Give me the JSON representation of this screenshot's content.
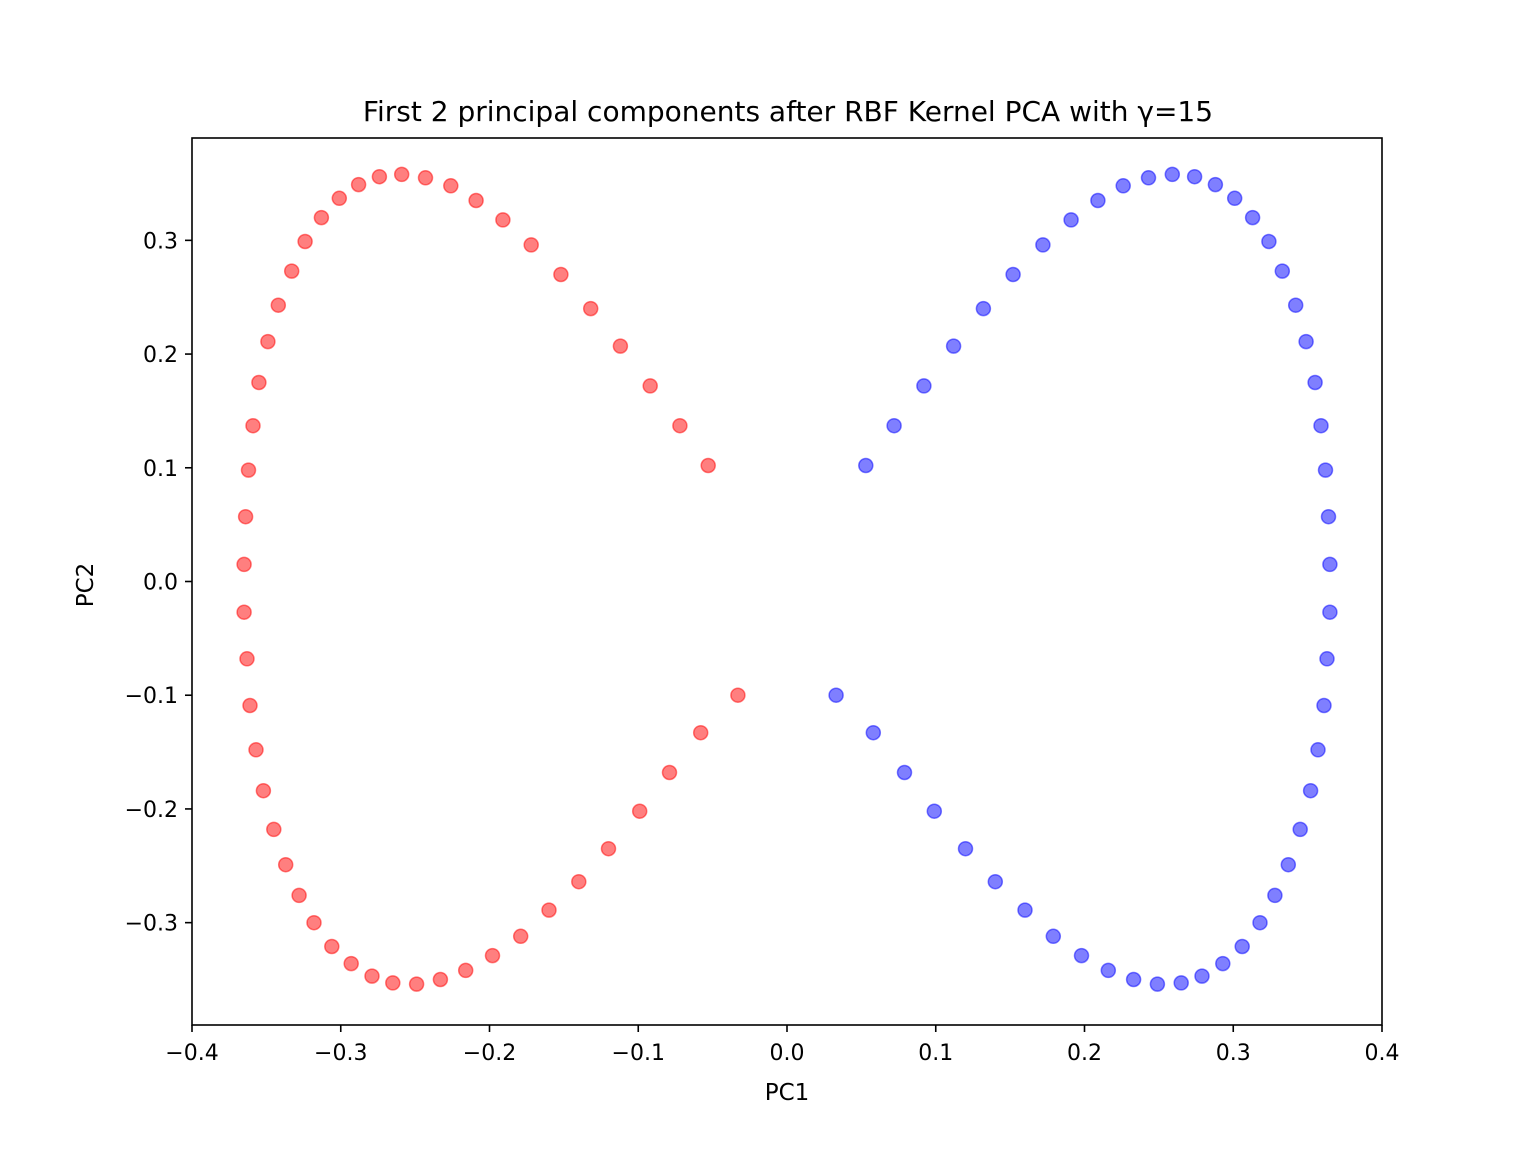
{
  "chart_data": {
    "type": "scatter",
    "title": "First 2 principal components after RBF Kernel PCA with γ=15",
    "xlabel": "PC1",
    "ylabel": "PC2",
    "xlim": [
      -0.4,
      0.4
    ],
    "ylim": [
      -0.39,
      0.39
    ],
    "xticks": [
      -0.4,
      -0.3,
      -0.2,
      -0.1,
      0.0,
      0.1,
      0.2,
      0.3,
      0.4
    ],
    "xtick_labels": [
      "−0.4",
      "−0.3",
      "−0.2",
      "−0.1",
      "0.0",
      "0.1",
      "0.2",
      "0.3",
      "0.4"
    ],
    "yticks": [
      -0.3,
      -0.2,
      -0.1,
      0.0,
      0.1,
      0.2,
      0.3
    ],
    "ytick_labels": [
      "−0.3",
      "−0.2",
      "−0.1",
      "0.0",
      "0.1",
      "0.2",
      "0.3"
    ],
    "grid": false,
    "series": [
      {
        "color": "#ff0000",
        "alpha": 0.5,
        "points": [
          [
            -0.053,
            0.102
          ],
          [
            -0.072,
            0.137
          ],
          [
            -0.092,
            0.172
          ],
          [
            -0.112,
            0.207
          ],
          [
            -0.132,
            0.24
          ],
          [
            -0.152,
            0.27
          ],
          [
            -0.172,
            0.296
          ],
          [
            -0.191,
            0.318
          ],
          [
            -0.209,
            0.335
          ],
          [
            -0.226,
            0.348
          ],
          [
            -0.243,
            0.355
          ],
          [
            -0.259,
            0.358
          ],
          [
            -0.274,
            0.356
          ],
          [
            -0.288,
            0.349
          ],
          [
            -0.301,
            0.337
          ],
          [
            -0.313,
            0.32
          ],
          [
            -0.324,
            0.299
          ],
          [
            -0.333,
            0.273
          ],
          [
            -0.342,
            0.243
          ],
          [
            -0.349,
            0.211
          ],
          [
            -0.355,
            0.175
          ],
          [
            -0.359,
            0.137
          ],
          [
            -0.362,
            0.098
          ],
          [
            -0.364,
            0.057
          ],
          [
            -0.365,
            0.015
          ],
          [
            -0.365,
            -0.027
          ],
          [
            -0.363,
            -0.068
          ],
          [
            -0.361,
            -0.109
          ],
          [
            -0.357,
            -0.148
          ],
          [
            -0.352,
            -0.184
          ],
          [
            -0.345,
            -0.218
          ],
          [
            -0.337,
            -0.249
          ],
          [
            -0.328,
            -0.276
          ],
          [
            -0.318,
            -0.3
          ],
          [
            -0.306,
            -0.321
          ],
          [
            -0.293,
            -0.336
          ],
          [
            -0.279,
            -0.347
          ],
          [
            -0.265,
            -0.353
          ],
          [
            -0.249,
            -0.354
          ],
          [
            -0.233,
            -0.35
          ],
          [
            -0.216,
            -0.342
          ],
          [
            -0.198,
            -0.329
          ],
          [
            -0.179,
            -0.312
          ],
          [
            -0.16,
            -0.289
          ],
          [
            -0.14,
            -0.264
          ],
          [
            -0.12,
            -0.235
          ],
          [
            -0.099,
            -0.202
          ],
          [
            -0.079,
            -0.168
          ],
          [
            -0.058,
            -0.133
          ],
          [
            -0.033,
            -0.1
          ]
        ]
      },
      {
        "color": "#0000ff",
        "alpha": 0.5,
        "points": [
          [
            0.053,
            0.102
          ],
          [
            0.072,
            0.137
          ],
          [
            0.092,
            0.172
          ],
          [
            0.112,
            0.207
          ],
          [
            0.132,
            0.24
          ],
          [
            0.152,
            0.27
          ],
          [
            0.172,
            0.296
          ],
          [
            0.191,
            0.318
          ],
          [
            0.209,
            0.335
          ],
          [
            0.226,
            0.348
          ],
          [
            0.243,
            0.355
          ],
          [
            0.259,
            0.358
          ],
          [
            0.274,
            0.356
          ],
          [
            0.288,
            0.349
          ],
          [
            0.301,
            0.337
          ],
          [
            0.313,
            0.32
          ],
          [
            0.324,
            0.299
          ],
          [
            0.333,
            0.273
          ],
          [
            0.342,
            0.243
          ],
          [
            0.349,
            0.211
          ],
          [
            0.355,
            0.175
          ],
          [
            0.359,
            0.137
          ],
          [
            0.362,
            0.098
          ],
          [
            0.364,
            0.057
          ],
          [
            0.365,
            0.015
          ],
          [
            0.365,
            -0.027
          ],
          [
            0.363,
            -0.068
          ],
          [
            0.361,
            -0.109
          ],
          [
            0.357,
            -0.148
          ],
          [
            0.352,
            -0.184
          ],
          [
            0.345,
            -0.218
          ],
          [
            0.337,
            -0.249
          ],
          [
            0.328,
            -0.276
          ],
          [
            0.318,
            -0.3
          ],
          [
            0.306,
            -0.321
          ],
          [
            0.293,
            -0.336
          ],
          [
            0.279,
            -0.347
          ],
          [
            0.265,
            -0.353
          ],
          [
            0.249,
            -0.354
          ],
          [
            0.233,
            -0.35
          ],
          [
            0.216,
            -0.342
          ],
          [
            0.198,
            -0.329
          ],
          [
            0.179,
            -0.312
          ],
          [
            0.16,
            -0.289
          ],
          [
            0.14,
            -0.264
          ],
          [
            0.12,
            -0.235
          ],
          [
            0.099,
            -0.202
          ],
          [
            0.079,
            -0.168
          ],
          [
            0.058,
            -0.133
          ],
          [
            0.033,
            -0.1
          ]
        ]
      }
    ]
  }
}
